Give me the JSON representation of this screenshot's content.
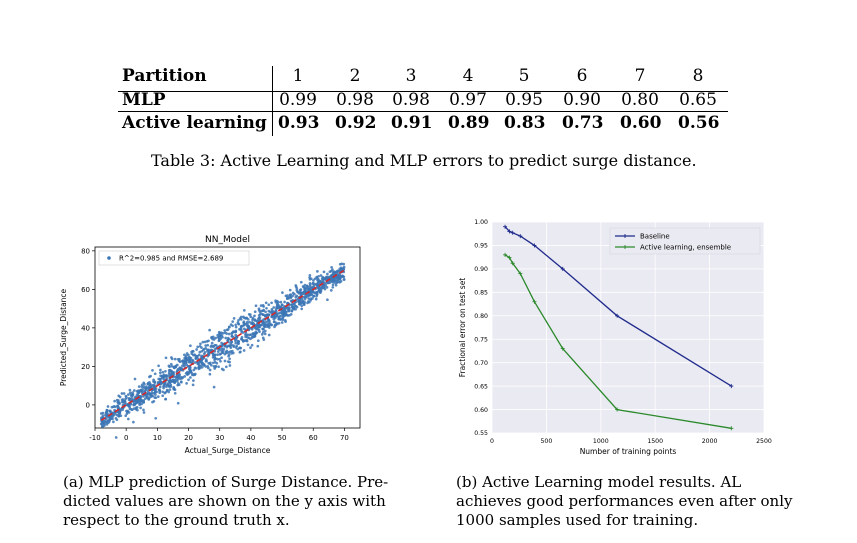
{
  "table": {
    "headers": [
      "Partition",
      "1",
      "2",
      "3",
      "4",
      "5",
      "6",
      "7",
      "8"
    ],
    "rows": [
      {
        "label": "MLP",
        "values": [
          "0.99",
          "0.98",
          "0.98",
          "0.97",
          "0.95",
          "0.90",
          "0.80",
          "0.65"
        ],
        "bold": false
      },
      {
        "label": "Active learning",
        "values": [
          "0.93",
          "0.92",
          "0.91",
          "0.89",
          "0.83",
          "0.73",
          "0.60",
          "0.56"
        ],
        "bold": true
      }
    ],
    "caption": "Table 3: Active Learning and MLP errors to predict surge distance."
  },
  "figure_a": {
    "caption_lines": [
      "(a) MLP prediction of Surge Distance. Pre-",
      "dicted values are shown on the y axis with",
      "respect to the ground truth x."
    ],
    "chart_data": {
      "type": "scatter",
      "title": "NN_Model",
      "xlabel": "Actual_Surge_Distance",
      "ylabel": "Predicted_Surge_Distance",
      "legend": "R^2=0.985 and RMSE=2.689",
      "legend_position": "top-left",
      "xlim": [
        -10,
        75
      ],
      "ylim": [
        -12,
        82
      ],
      "xticks": [
        "-10",
        "0",
        "10",
        "20",
        "30",
        "40",
        "50",
        "60",
        "70"
      ],
      "yticks": [
        "0",
        "20",
        "40",
        "60",
        "80"
      ],
      "fit_line": {
        "x": [
          -8,
          70
        ],
        "y": [
          -8,
          70
        ]
      },
      "point_color": "#3b76b5",
      "line_color": "#d62728"
    }
  },
  "figure_b": {
    "caption_lines": [
      "(b) Active Learning model results. AL",
      "achieves good performances even after only",
      "1000 samples used for training."
    ],
    "chart_data": {
      "type": "line",
      "xlabel": "Number of training points",
      "ylabel": "Fractional error on test set",
      "xlim": [
        0,
        2500
      ],
      "ylim": [
        0.55,
        1.0
      ],
      "xticks": [
        "0",
        "500",
        "1000",
        "1500",
        "2000",
        "2500"
      ],
      "yticks": [
        "0.55",
        "0.60",
        "0.65",
        "0.70",
        "0.75",
        "0.80",
        "0.85",
        "0.90",
        "0.95",
        "1.00"
      ],
      "legend_position": "top-right",
      "series": [
        {
          "name": "Baseline",
          "color": "#1f2a8c",
          "x": [
            120,
            160,
            190,
            260,
            390,
            650,
            1150,
            2200
          ],
          "y": [
            0.99,
            0.98,
            0.977,
            0.97,
            0.95,
            0.9,
            0.8,
            0.65
          ]
        },
        {
          "name": "Active learning, ensemble",
          "color": "#2b8a2b",
          "x": [
            120,
            160,
            190,
            260,
            390,
            650,
            1150,
            2200
          ],
          "y": [
            0.93,
            0.924,
            0.912,
            0.89,
            0.83,
            0.73,
            0.6,
            0.56
          ]
        }
      ]
    }
  }
}
